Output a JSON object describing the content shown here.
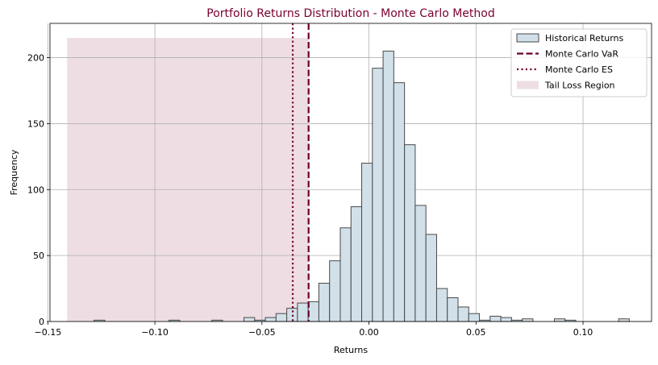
{
  "chart_data": {
    "type": "bar",
    "title": "Portfolio Returns Distribution - Monte Carlo Method",
    "xlabel": "Returns",
    "ylabel": "Frequency",
    "xlim": [
      -0.149,
      0.132
    ],
    "ylim": [
      0,
      226
    ],
    "xticks": [
      -0.15,
      -0.1,
      -0.05,
      0.0,
      0.05,
      0.1
    ],
    "xtick_labels": [
      "−0.15",
      "−0.10",
      "−0.05",
      "0.00",
      "0.05",
      "0.10"
    ],
    "yticks": [
      0,
      50,
      100,
      150,
      200
    ],
    "ytick_labels": [
      "0",
      "50",
      "100",
      "150",
      "200"
    ],
    "grid": true,
    "legend_position": "top-right",
    "histogram": {
      "name": "Historical Returns",
      "bin_start": -0.1284,
      "bin_width": 0.005,
      "counts": [
        1,
        0,
        0,
        0,
        0,
        0,
        0,
        1,
        0,
        0,
        0,
        1,
        0,
        0,
        3,
        1,
        3,
        6,
        10,
        14,
        15,
        29,
        46,
        71,
        87,
        120,
        192,
        205,
        181,
        134,
        88,
        66,
        25,
        18,
        11,
        6,
        1,
        4,
        3,
        1,
        2,
        0,
        0,
        2,
        1,
        0,
        0,
        0,
        0,
        2
      ],
      "fill_color": "#d0dfe8",
      "edge_color": "#4a4a4a"
    },
    "var": {
      "name": "Monte Carlo VaR",
      "value": -0.0282,
      "color": "#6b0030",
      "style": "dashed"
    },
    "es": {
      "name": "Monte Carlo ES",
      "value": -0.0356,
      "color": "#7a0030",
      "style": "dotted"
    },
    "tail_region": {
      "name": "Tail Loss Region",
      "x_start": -0.141,
      "x_end": -0.0282,
      "height": 215,
      "color": "#e8d3da"
    },
    "title_color": "#7a0030"
  }
}
